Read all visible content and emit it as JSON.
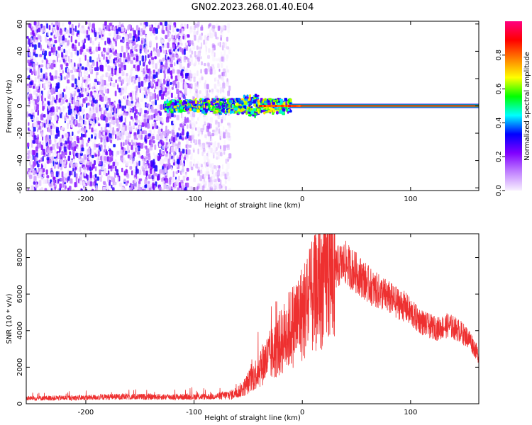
{
  "title": "GN02.2023.268.01.40.E04",
  "chart_data": [
    {
      "type": "heatmap",
      "xlabel": "Height of straight line (km)",
      "ylabel": "Frequency (Hz)",
      "xlim": [
        -255,
        163
      ],
      "ylim": [
        -62,
        62
      ],
      "xticks": [
        -200,
        -100,
        0,
        100
      ],
      "yticks": [
        60,
        40,
        20,
        0,
        -20,
        -40,
        -60
      ],
      "colorbar": {
        "label": "Normalized spectral amplitude",
        "range": [
          0,
          1
        ],
        "ticks": [
          "0.0",
          "0.2",
          "0.4",
          "0.6",
          "0.8"
        ],
        "tick_values": [
          0.0,
          0.2,
          0.4,
          0.6,
          0.8
        ],
        "colors": [
          "#f8f0ff",
          "#c080ff",
          "#8000ff",
          "#0000ff",
          "#00ffff",
          "#00ff00",
          "#ffff00",
          "#ff8000",
          "#ff0000",
          "#ff0080"
        ]
      },
      "regions": {
        "noise_from_x": -255,
        "noise_dense_to_x": -105,
        "noise_sparse_to_x": -68,
        "burst_from_x": -128,
        "burst_to_x": -12,
        "tone_from_x": -12,
        "tone_to_x": 163,
        "tone_frequency": 0
      }
    },
    {
      "type": "line",
      "xlabel": "Height of straight line (km)",
      "ylabel": "SNR (10 * v/v)",
      "xlim": [
        -255,
        163
      ],
      "ylim": [
        0,
        9300
      ],
      "xticks": [
        -200,
        -100,
        0,
        100
      ],
      "yticks": [
        0,
        2000,
        4000,
        6000,
        8000
      ],
      "color": "#ee3030",
      "envelope": {
        "x": [
          -255,
          -220,
          -200,
          -175,
          -150,
          -120,
          -95,
          -80,
          -65,
          -55,
          -45,
          -35,
          -25,
          -15,
          -5,
          5,
          15,
          25,
          35,
          40,
          45,
          55,
          65,
          75,
          85,
          95,
          105,
          115,
          125,
          135,
          145,
          155,
          163
        ],
        "y": [
          300,
          320,
          330,
          380,
          380,
          370,
          380,
          400,
          500,
          800,
          1500,
          2300,
          2900,
          3800,
          4600,
          5400,
          6300,
          7100,
          7600,
          7700,
          7400,
          6900,
          6300,
          6000,
          5600,
          5300,
          4700,
          4300,
          4100,
          4300,
          4000,
          3500,
          2600
        ]
      }
    }
  ]
}
